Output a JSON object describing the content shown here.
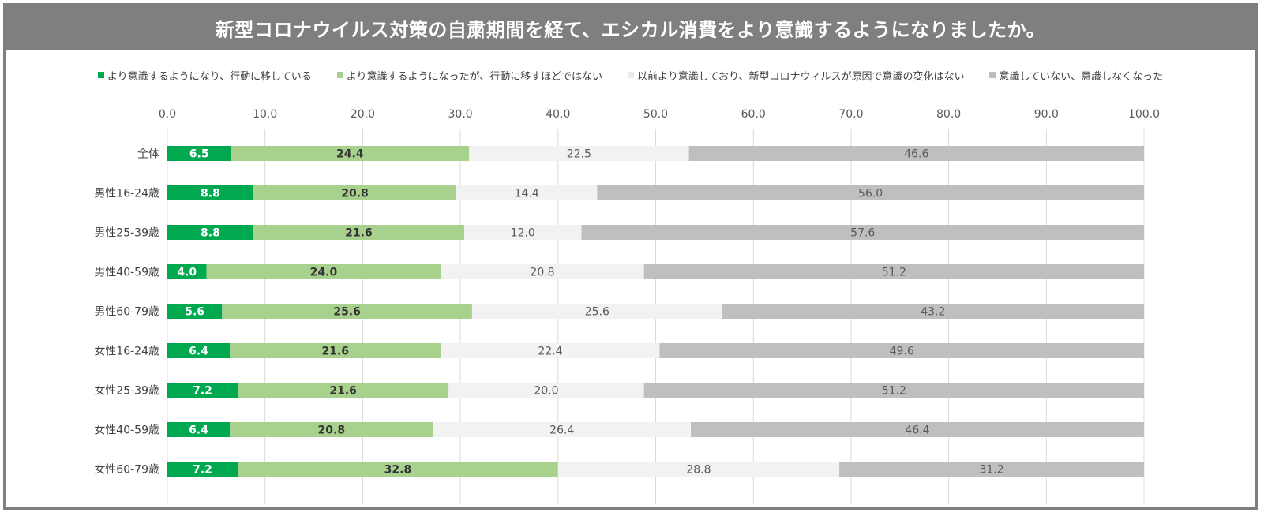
{
  "title": "新型コロナウイルス対策の自粛期間を経て、エシカル消費をより意識するようになりましたか。",
  "chart_data": {
    "type": "bar",
    "orientation": "horizontal",
    "stacked": true,
    "categories": [
      "全体",
      "男性16-24歳",
      "男性25-39歳",
      "男性40-59歳",
      "男性60-79歳",
      "女性16-24歳",
      "女性25-39歳",
      "女性40-59歳",
      "女性60-79歳"
    ],
    "series": [
      {
        "name": "より意識するようになり、行動に移している",
        "color": "#00a84f",
        "label_color": "#ffffff",
        "label_bold": true,
        "values": [
          6.5,
          8.8,
          8.8,
          4.0,
          5.6,
          6.4,
          7.2,
          6.4,
          7.2
        ]
      },
      {
        "name": "より意識するようになったが、行動に移すほどではない",
        "color": "#a9d18e",
        "label_color": "#333333",
        "label_bold": true,
        "values": [
          24.4,
          20.8,
          21.6,
          24.0,
          25.6,
          21.6,
          21.6,
          20.8,
          32.8
        ]
      },
      {
        "name": "以前より意識しており、新型コロナウィルスが原因で意識の変化はない",
        "color": "#f2f2f2",
        "label_color": "#595959",
        "label_bold": false,
        "values": [
          22.5,
          14.4,
          12.0,
          20.8,
          25.6,
          22.4,
          20.0,
          26.4,
          28.8
        ]
      },
      {
        "name": "意識していない、意識しなくなった",
        "color": "#bfbfbf",
        "label_color": "#595959",
        "label_bold": false,
        "values": [
          46.6,
          56.0,
          57.6,
          51.2,
          43.2,
          49.6,
          51.2,
          46.4,
          31.2
        ]
      }
    ],
    "xlim": [
      0,
      100
    ],
    "x_ticks": [
      "0.0",
      "10.0",
      "20.0",
      "30.0",
      "40.0",
      "50.0",
      "60.0",
      "70.0",
      "80.0",
      "90.0",
      "100.0"
    ],
    "grid": true,
    "legend_position": "top"
  }
}
